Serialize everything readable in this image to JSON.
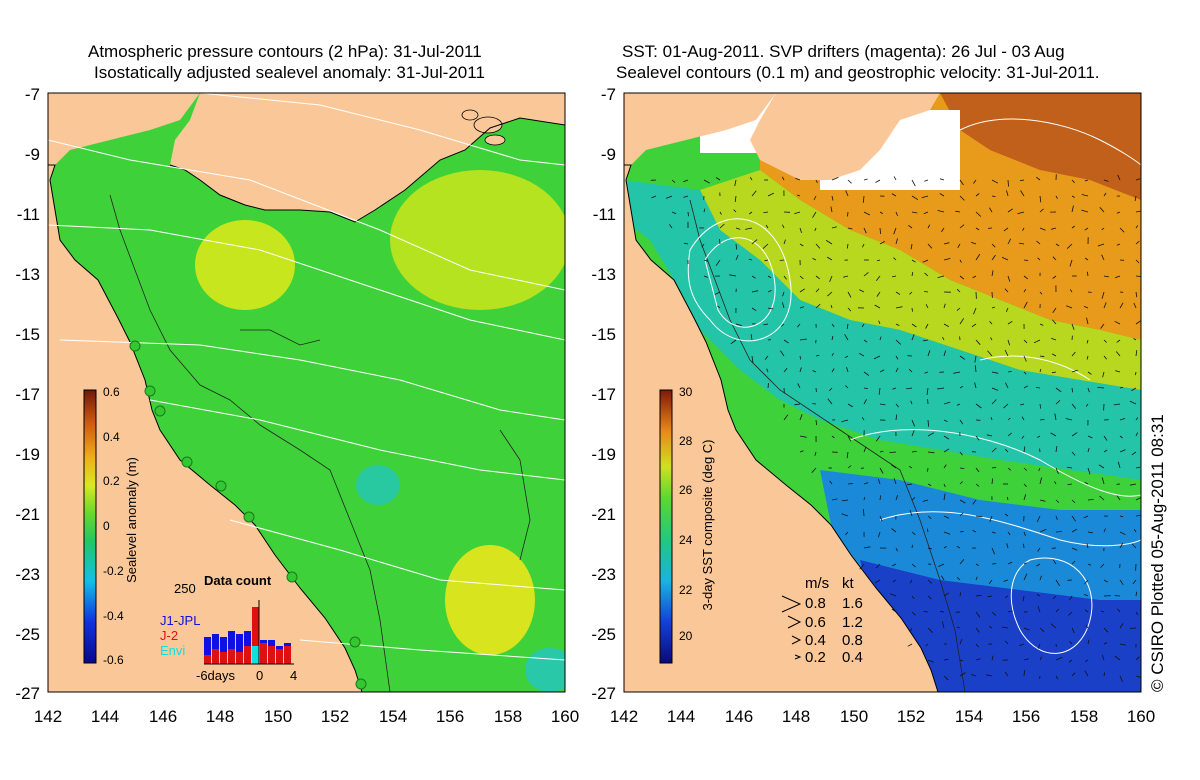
{
  "left_map": {
    "title_line1": "Atmospheric pressure contours (2 hPa): 31-Jul-2011",
    "title_line2": "Isostatically adjusted sealevel anomaly: 31-Jul-2011",
    "y_ticks": [
      "-7",
      "-9",
      "-11",
      "-13",
      "-15",
      "-17",
      "-19",
      "-21",
      "-23",
      "-25",
      "-27"
    ],
    "x_ticks": [
      "142",
      "144",
      "146",
      "148",
      "150",
      "152",
      "154",
      "156",
      "158",
      "160"
    ],
    "colorbar": {
      "label": "Sealevel anomaly (m)",
      "ticks": [
        "0.6",
        "0.4",
        "0.2",
        "0",
        "-0.2",
        "-0.4",
        "-0.6"
      ]
    },
    "inset": {
      "y_tick": "250",
      "title": "Data count",
      "legend": [
        {
          "label": "J1-JPL",
          "color": "#1010e0"
        },
        {
          "label": "J-2",
          "color": "#e01010"
        },
        {
          "label": "Envi",
          "color": "#10e0e0"
        }
      ],
      "x_ticks": [
        "-6days",
        "0",
        "4"
      ],
      "bars_blue": [
        0.45,
        0.5,
        0.45,
        0.55,
        0.5,
        0.55,
        0.75,
        0.4,
        0.4,
        0.3,
        0.35
      ],
      "bars_red": [
        0.15,
        0.25,
        0.2,
        0.25,
        0.2,
        0.3,
        0.95,
        0.35,
        0.3,
        0.25,
        0.3
      ],
      "bars_cyan": [
        0,
        0,
        0,
        0,
        0,
        0,
        0.3,
        0,
        0,
        0,
        0
      ]
    }
  },
  "right_map": {
    "title_line1": "SST: 01-Aug-2011. SVP drifters (magenta): 26 Jul - 03 Aug",
    "title_line2": "Sealevel contours (0.1 m) and geostrophic velocity: 31-Jul-2011.",
    "y_ticks": [
      "-7",
      "-9",
      "-11",
      "-13",
      "-15",
      "-17",
      "-19",
      "-21",
      "-23",
      "-25",
      "-27"
    ],
    "x_ticks": [
      "142",
      "144",
      "146",
      "148",
      "150",
      "152",
      "154",
      "156",
      "158",
      "160"
    ],
    "colorbar": {
      "label": "3-day SST composite (deg C)",
      "ticks": [
        "30",
        "28",
        "26",
        "24",
        "22",
        "20"
      ]
    },
    "speed_legend": {
      "header_ms": "m/s",
      "header_kt": "kt",
      "rows": [
        {
          "ms": "0.8",
          "kt": "1.6"
        },
        {
          "ms": "0.6",
          "kt": "1.2"
        },
        {
          "ms": "0.4",
          "kt": "0.8"
        },
        {
          "ms": "0.2",
          "kt": "0.4"
        }
      ]
    }
  },
  "credit": "© CSIRO Plotted 05-Aug-2011 08:31",
  "colors": {
    "land": "#fac898",
    "sla_green": "#3fd13a",
    "sla_yellow": "#c8e61e",
    "sst_orange": "#e89a1a",
    "sst_green": "#3fd13a",
    "sst_blue": "#1a5adc",
    "sst_navy": "#101880"
  }
}
